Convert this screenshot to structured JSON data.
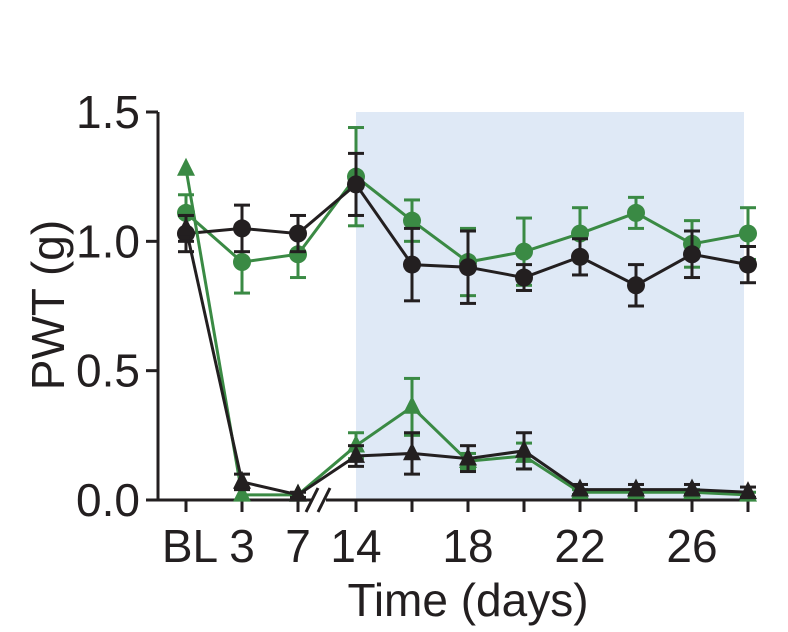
{
  "chart_data": {
    "type": "line",
    "xlabel": "Time (days)",
    "ylabel": "PWT (g)",
    "ylim": [
      0,
      1.5
    ],
    "yticks": [
      "0.0",
      "0.5",
      "1.0",
      "1.5"
    ],
    "xticks": [
      "BL",
      "3",
      "7",
      "14",
      "18",
      "22",
      "26"
    ],
    "axis_break": "between 7 and 14",
    "shaded_region": {
      "x_from": 14,
      "x_to": 28,
      "color": "#dfe9f6"
    },
    "colors": {
      "green": "#3a8a44",
      "black": "#231f20"
    },
    "series": [
      {
        "marker": "circle",
        "color": "#3a8a44",
        "points": [
          {
            "x": "BL",
            "y": 1.11,
            "err": 0.07
          },
          {
            "x": 3,
            "y": 0.92,
            "err": 0.12
          },
          {
            "x": 7,
            "y": 0.95,
            "err": 0.09
          },
          {
            "x": 14,
            "y": 1.25,
            "err": 0.19
          },
          {
            "x": 16,
            "y": 1.08,
            "err": 0.08
          },
          {
            "x": 18,
            "y": 0.92,
            "err": 0.13
          },
          {
            "x": 20,
            "y": 0.96,
            "err": 0.13
          },
          {
            "x": 22,
            "y": 1.03,
            "err": 0.1
          },
          {
            "x": 24,
            "y": 1.11,
            "err": 0.06
          },
          {
            "x": 26,
            "y": 0.99,
            "err": 0.09
          },
          {
            "x": 28,
            "y": 1.03,
            "err": 0.1
          }
        ]
      },
      {
        "marker": "circle",
        "color": "#231f20",
        "points": [
          {
            "x": "BL",
            "y": 1.03,
            "err": 0.07
          },
          {
            "x": 3,
            "y": 1.05,
            "err": 0.09
          },
          {
            "x": 7,
            "y": 1.03,
            "err": 0.07
          },
          {
            "x": 14,
            "y": 1.22,
            "err": 0.12
          },
          {
            "x": 16,
            "y": 0.91,
            "err": 0.14
          },
          {
            "x": 18,
            "y": 0.9,
            "err": 0.14
          },
          {
            "x": 20,
            "y": 0.86,
            "err": 0.05
          },
          {
            "x": 22,
            "y": 0.94,
            "err": 0.07
          },
          {
            "x": 24,
            "y": 0.83,
            "err": 0.08
          },
          {
            "x": 26,
            "y": 0.95,
            "err": 0.09
          },
          {
            "x": 28,
            "y": 0.91,
            "err": 0.07
          }
        ]
      },
      {
        "marker": "triangle",
        "color": "#3a8a44",
        "points": [
          {
            "x": "BL",
            "y": 1.28,
            "err": 0.0
          },
          {
            "x": 3,
            "y": 0.02,
            "err": 0.0
          },
          {
            "x": 7,
            "y": 0.02,
            "err": 0.0
          },
          {
            "x": 14,
            "y": 0.21,
            "err": 0.05
          },
          {
            "x": 16,
            "y": 0.36,
            "err": 0.11
          },
          {
            "x": 18,
            "y": 0.15,
            "err": 0.03
          },
          {
            "x": 20,
            "y": 0.17,
            "err": 0.05
          },
          {
            "x": 22,
            "y": 0.03,
            "err": 0.01
          },
          {
            "x": 24,
            "y": 0.03,
            "err": 0.01
          },
          {
            "x": 26,
            "y": 0.03,
            "err": 0.01
          },
          {
            "x": 28,
            "y": 0.02,
            "err": 0.01
          }
        ]
      },
      {
        "marker": "triangle",
        "color": "#231f20",
        "points": [
          {
            "x": "BL",
            "y": 1.05,
            "err": 0.05
          },
          {
            "x": 3,
            "y": 0.07,
            "err": 0.03
          },
          {
            "x": 7,
            "y": 0.02,
            "err": 0.01
          },
          {
            "x": 14,
            "y": 0.17,
            "err": 0.04
          },
          {
            "x": 16,
            "y": 0.18,
            "err": 0.08
          },
          {
            "x": 18,
            "y": 0.16,
            "err": 0.05
          },
          {
            "x": 20,
            "y": 0.19,
            "err": 0.07
          },
          {
            "x": 22,
            "y": 0.04,
            "err": 0.02
          },
          {
            "x": 24,
            "y": 0.04,
            "err": 0.02
          },
          {
            "x": 26,
            "y": 0.04,
            "err": 0.02
          },
          {
            "x": 28,
            "y": 0.03,
            "err": 0.02
          }
        ]
      }
    ]
  }
}
